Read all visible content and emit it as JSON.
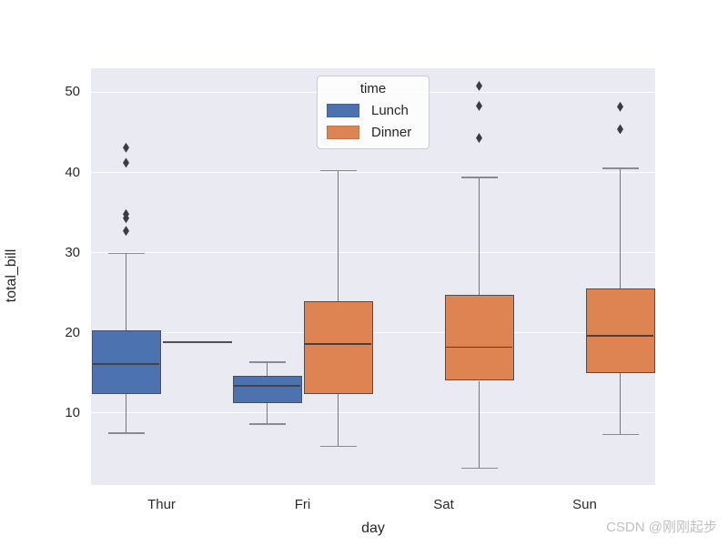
{
  "figure": {
    "watermark": "CSDN @刚刚起步"
  },
  "chart_data": {
    "type": "boxplot",
    "title": "",
    "xlabel": "day",
    "ylabel": "total_bill",
    "categories": [
      "Thur",
      "Fri",
      "Sat",
      "Sun"
    ],
    "yticks": [
      10,
      20,
      30,
      40,
      50
    ],
    "ylim": [
      1,
      53
    ],
    "grid": "horizontal white gridlines on light lavender background",
    "legend": {
      "title": "time",
      "position": "upper center",
      "entries": [
        {
          "label": "Lunch",
          "color": "#4c72b0"
        },
        {
          "label": "Dinner",
          "color": "#dd8452"
        }
      ]
    },
    "series": [
      {
        "name": "Lunch",
        "color": "#4c72b0",
        "boxes": [
          {
            "category": "Thur",
            "whisker_low": 7.5,
            "q1": 12.4,
            "median": 16.1,
            "q3": 20.3,
            "whisker_high": 29.9,
            "outliers": [
              32.7,
              34.3,
              34.8,
              41.2,
              43.1
            ]
          },
          {
            "category": "Fri",
            "whisker_low": 8.6,
            "q1": 11.2,
            "median": 13.4,
            "q3": 14.6,
            "whisker_high": 16.3,
            "outliers": []
          },
          null,
          null
        ]
      },
      {
        "name": "Dinner",
        "color": "#dd8452",
        "boxes": [
          {
            "category": "Thur",
            "single_value": 18.8
          },
          {
            "category": "Fri",
            "whisker_low": 5.8,
            "q1": 12.4,
            "median": 18.6,
            "q3": 23.9,
            "whisker_high": 40.2,
            "outliers": []
          },
          {
            "category": "Sat",
            "whisker_low": 3.1,
            "q1": 14.0,
            "median": 18.2,
            "q3": 24.7,
            "whisker_high": 39.4,
            "outliers": [
              44.3,
              48.3,
              50.8
            ]
          },
          {
            "category": "Sun",
            "whisker_low": 7.3,
            "q1": 15.0,
            "median": 19.6,
            "q3": 25.5,
            "whisker_high": 40.5,
            "outliers": [
              45.4,
              48.2
            ]
          }
        ]
      }
    ],
    "colors": {
      "axes_background": "#eaeaf2",
      "gridline": "#ffffff",
      "box_edge": "#4d5056",
      "whisker": "#75757b",
      "median": "#3f434a",
      "outlier": "#3a3d42",
      "tick_label": "#2b2b2b",
      "watermark": "#c0c0c0"
    }
  }
}
